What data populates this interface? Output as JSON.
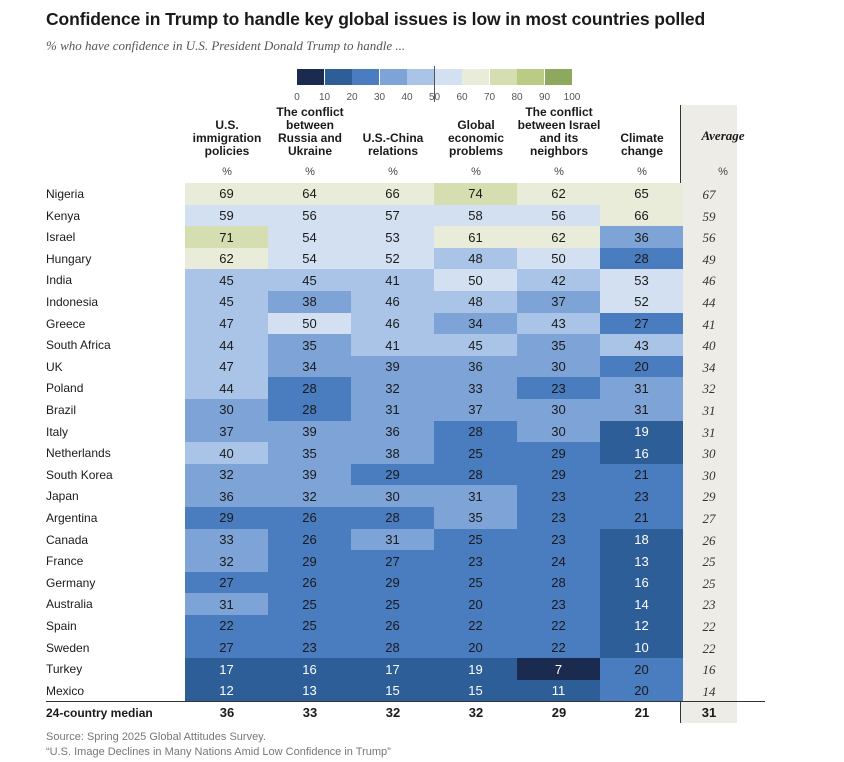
{
  "title": "Confidence in Trump to handle key global issues is low in most countries polled",
  "subtitle": "% who have confidence in U.S. President Donald Trump to handle ...",
  "legend": {
    "ticks": [
      "0",
      "10",
      "20",
      "30",
      "40",
      "50",
      "60",
      "70",
      "80",
      "90",
      "100"
    ],
    "colors": [
      "#1b2a4f",
      "#2d5e98",
      "#4a7cc0",
      "#7ea3d6",
      "#a9c4e6",
      "#d2e0f1",
      "#e8ecd8",
      "#d5deb0",
      "#b9cb85",
      "#8ea85e",
      "#5f7b39"
    ]
  },
  "chart_data": {
    "type": "heatmap",
    "title": "Confidence in Trump to handle key global issues is low in most countries polled",
    "subtitle": "% who have confidence in U.S. President Donald Trump to handle ...",
    "columns": [
      "U.S. immigration policies",
      "The conflict between Russia and Ukraine",
      "U.S.-China relations",
      "Global economic problems",
      "The conflict between Israel and its neighbors",
      "Climate change"
    ],
    "average_label": "Average",
    "unit_label": "%",
    "rows": [
      {
        "country": "Nigeria",
        "values": [
          69,
          64,
          66,
          74,
          62,
          65
        ],
        "average": 67
      },
      {
        "country": "Kenya",
        "values": [
          59,
          56,
          57,
          58,
          56,
          66
        ],
        "average": 59
      },
      {
        "country": "Israel",
        "values": [
          71,
          54,
          53,
          61,
          62,
          36
        ],
        "average": 56
      },
      {
        "country": "Hungary",
        "values": [
          62,
          54,
          52,
          48,
          50,
          28
        ],
        "average": 49
      },
      {
        "country": "India",
        "values": [
          45,
          45,
          41,
          50,
          42,
          53
        ],
        "average": 46
      },
      {
        "country": "Indonesia",
        "values": [
          45,
          38,
          46,
          48,
          37,
          52
        ],
        "average": 44
      },
      {
        "country": "Greece",
        "values": [
          47,
          50,
          46,
          34,
          43,
          27
        ],
        "average": 41
      },
      {
        "country": "South Africa",
        "values": [
          44,
          35,
          41,
          45,
          35,
          43
        ],
        "average": 40
      },
      {
        "country": "UK",
        "values": [
          47,
          34,
          39,
          36,
          30,
          20
        ],
        "average": 34
      },
      {
        "country": "Poland",
        "values": [
          44,
          28,
          32,
          33,
          23,
          31
        ],
        "average": 32
      },
      {
        "country": "Brazil",
        "values": [
          30,
          28,
          31,
          37,
          30,
          31
        ],
        "average": 31
      },
      {
        "country": "Italy",
        "values": [
          37,
          39,
          36,
          28,
          30,
          19
        ],
        "average": 31
      },
      {
        "country": "Netherlands",
        "values": [
          40,
          35,
          38,
          25,
          29,
          16
        ],
        "average": 30
      },
      {
        "country": "South Korea",
        "values": [
          32,
          39,
          29,
          28,
          29,
          21
        ],
        "average": 30
      },
      {
        "country": "Japan",
        "values": [
          36,
          32,
          30,
          31,
          23,
          23
        ],
        "average": 29
      },
      {
        "country": "Argentina",
        "values": [
          29,
          26,
          28,
          35,
          23,
          21
        ],
        "average": 27
      },
      {
        "country": "Canada",
        "values": [
          33,
          26,
          31,
          25,
          23,
          18
        ],
        "average": 26
      },
      {
        "country": "France",
        "values": [
          32,
          29,
          27,
          23,
          24,
          13
        ],
        "average": 25
      },
      {
        "country": "Germany",
        "values": [
          27,
          26,
          29,
          25,
          28,
          16
        ],
        "average": 25
      },
      {
        "country": "Australia",
        "values": [
          31,
          25,
          25,
          20,
          23,
          14
        ],
        "average": 23
      },
      {
        "country": "Spain",
        "values": [
          22,
          25,
          26,
          22,
          22,
          12
        ],
        "average": 22
      },
      {
        "country": "Sweden",
        "values": [
          27,
          23,
          28,
          20,
          22,
          10
        ],
        "average": 22
      },
      {
        "country": "Turkey",
        "values": [
          17,
          16,
          17,
          19,
          7,
          20
        ],
        "average": 16
      },
      {
        "country": "Mexico",
        "values": [
          12,
          13,
          15,
          15,
          11,
          20
        ],
        "average": 14
      }
    ],
    "median": {
      "label": "24-country median",
      "values": [
        36,
        33,
        32,
        32,
        29,
        21
      ],
      "average": 31
    }
  },
  "source": "Source: Spring 2025 Global Attitudes Survey.",
  "note": "“U.S. Image Declines in Many Nations Amid Low Confidence in Trump”"
}
